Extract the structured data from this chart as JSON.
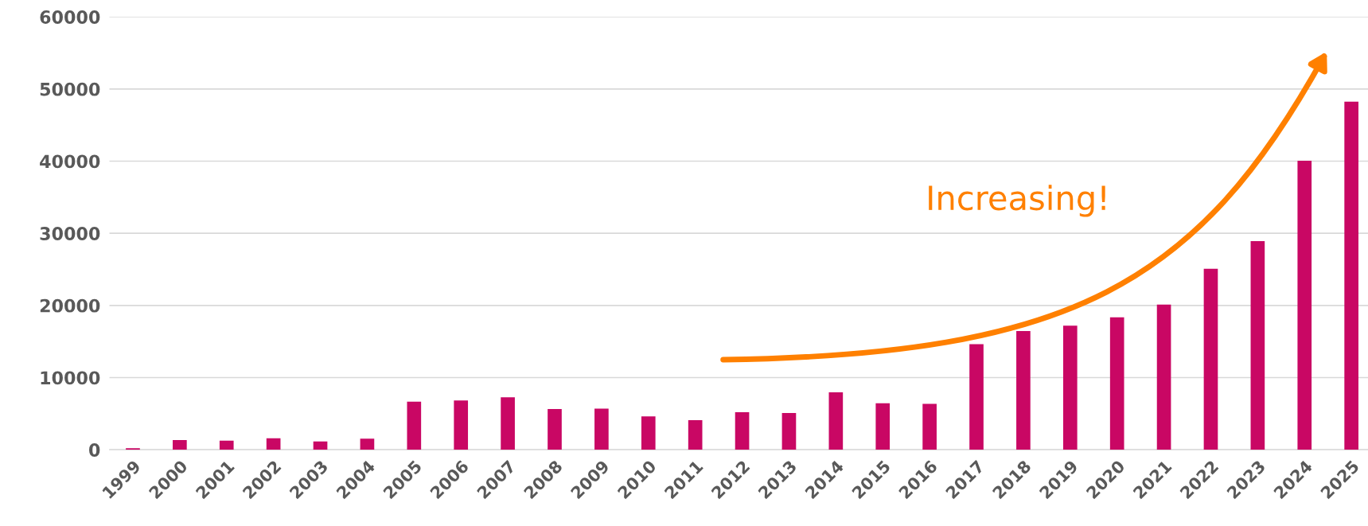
{
  "chart_data": {
    "type": "bar",
    "categories": [
      "1999",
      "2000",
      "2001",
      "2002",
      "2003",
      "2004",
      "2005",
      "2006",
      "2007",
      "2008",
      "2009",
      "2010",
      "2011",
      "2012",
      "2013",
      "2014",
      "2015",
      "2016",
      "2017",
      "2018",
      "2019",
      "2020",
      "2021",
      "2022",
      "2023",
      "2024",
      "2025"
    ],
    "values": [
      200,
      1330,
      1270,
      1580,
      1140,
      1520,
      6650,
      6840,
      7280,
      5630,
      5700,
      4620,
      4110,
      5200,
      5090,
      7960,
      6430,
      6360,
      14620,
      16450,
      17190,
      18350,
      20120,
      25070,
      28920,
      40040,
      48240
    ],
    "color": "#c90764",
    "ylim": [
      0,
      60000
    ],
    "yticks": [
      0,
      10000,
      20000,
      30000,
      40000,
      50000,
      60000
    ],
    "grid": "y",
    "annotations": [
      "Increasing!"
    ]
  }
}
